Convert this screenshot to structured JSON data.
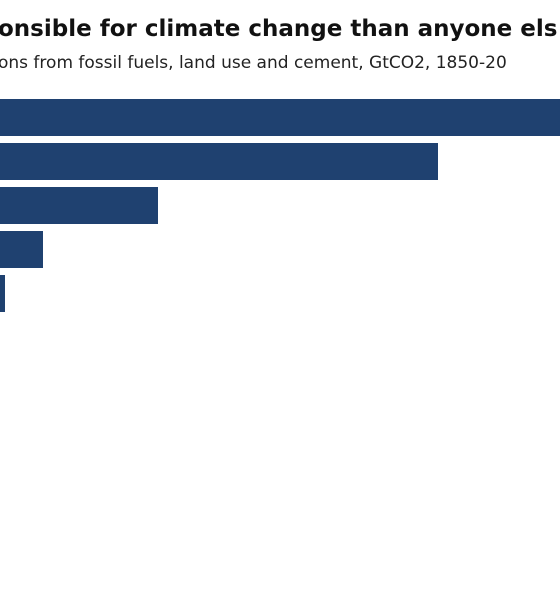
{
  "chart_data": {
    "type": "bar",
    "orientation": "horizontal",
    "title": "onsible for climate change than anyone els",
    "subtitle": "ons from fossil fuels, land use and cement, GtCO2, 1850-20",
    "categories": [
      null,
      null,
      null,
      null,
      null
    ],
    "values": [
      620,
      478,
      198,
      83,
      45
    ],
    "color": "#1f4170",
    "xlim": [
      0,
      600
    ]
  }
}
